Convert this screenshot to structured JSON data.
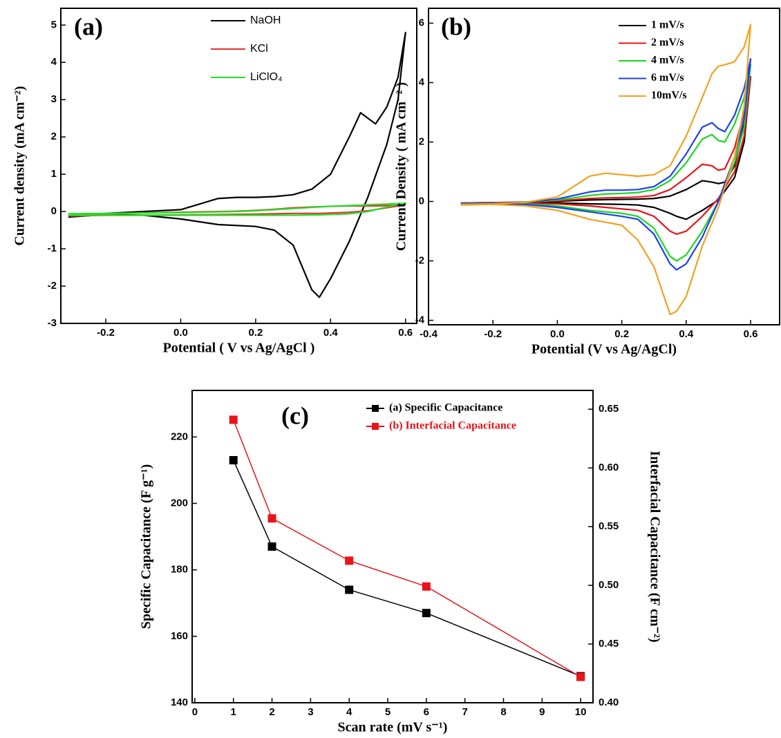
{
  "chart_data": [
    {
      "type": "line",
      "label": "(a)",
      "x_label": "Potential ( V vs Ag/AgCl )",
      "y_label": "Current density (mA cm⁻²)",
      "x": [
        -0.3,
        -0.2,
        -0.1,
        0,
        0.05,
        0.1,
        0.15,
        0.2,
        0.25,
        0.3,
        0.35,
        0.4,
        0.45,
        0.48,
        0.5,
        0.52,
        0.55,
        0.58,
        0.6,
        0.58,
        0.55,
        0.5,
        0.45,
        0.4,
        0.37,
        0.35,
        0.3,
        0.25,
        0.2,
        0.1,
        0,
        -0.1,
        -0.2,
        -0.3
      ],
      "series": [
        {
          "name": "NaOH",
          "color": "#000000",
          "values": [
            -0.1,
            -0.05,
            0,
            0.05,
            0.2,
            0.35,
            0.38,
            0.38,
            0.4,
            0.45,
            0.6,
            1.0,
            2.0,
            2.65,
            2.5,
            2.35,
            2.8,
            3.6,
            4.8,
            3.0,
            1.8,
            0.4,
            -0.8,
            -1.8,
            -2.3,
            -2.1,
            -0.9,
            -0.5,
            -0.4,
            -0.35,
            -0.2,
            -0.1,
            -0.08,
            -0.15
          ]
        },
        {
          "name": "KCl",
          "color": "#e8312f",
          "values": [
            -0.08,
            -0.06,
            -0.04,
            -0.02,
            -0.01,
            0,
            0.01,
            0.03,
            0.06,
            0.1,
            0.12,
            0.14,
            0.15,
            0.15,
            0.15,
            0.15,
            0.16,
            0.18,
            0.2,
            0.15,
            0.1,
            0.02,
            -0.02,
            -0.04,
            -0.05,
            -0.05,
            -0.05,
            -0.06,
            -0.07,
            -0.08,
            -0.09,
            -0.1,
            -0.1,
            -0.12
          ]
        },
        {
          "name": "LiClO₄",
          "color": "#22e02a",
          "values": [
            -0.06,
            -0.05,
            -0.04,
            -0.03,
            -0.02,
            -0.01,
            0,
            0.02,
            0.05,
            0.08,
            0.11,
            0.14,
            0.16,
            0.17,
            0.18,
            0.19,
            0.2,
            0.21,
            0.22,
            0.2,
            0.12,
            0,
            -0.06,
            -0.08,
            -0.09,
            -0.09,
            -0.1,
            -0.1,
            -0.1,
            -0.1,
            -0.1,
            -0.1,
            -0.1,
            -0.1
          ]
        }
      ],
      "xlim": [
        -0.32,
        0.63
      ],
      "xticks": [
        -0.2,
        {
          "value": 0,
          "label": "0.0"
        },
        0.2,
        0.4,
        0.6
      ],
      "ylim": [
        -3,
        5.45
      ],
      "yticks": [
        -3,
        -2,
        -1,
        0,
        1,
        2,
        3,
        4,
        5
      ]
    },
    {
      "type": "line",
      "label": "(b)",
      "x_label": "Potential (V vs Ag/AgCl)",
      "y_label": "Current Density ( mA cm⁻² )",
      "x": [
        -0.3,
        -0.2,
        -0.1,
        0,
        0.05,
        0.1,
        0.15,
        0.2,
        0.25,
        0.3,
        0.35,
        0.4,
        0.45,
        0.48,
        0.5,
        0.52,
        0.55,
        0.58,
        0.6,
        0.58,
        0.55,
        0.5,
        0.45,
        0.4,
        0.37,
        0.35,
        0.3,
        0.25,
        0.2,
        0.1,
        0,
        -0.1,
        -0.2,
        -0.3
      ],
      "series": [
        {
          "name": "1 mV/s",
          "color": "#000000",
          "values": [
            -0.05,
            -0.04,
            -0.03,
            0,
            0.03,
            0.05,
            0.06,
            0.07,
            0.08,
            0.1,
            0.18,
            0.4,
            0.7,
            0.65,
            0.6,
            0.65,
            1.2,
            2.6,
            4.2,
            2.0,
            0.8,
            0.05,
            -0.3,
            -0.6,
            -0.5,
            -0.4,
            -0.2,
            -0.12,
            -0.1,
            -0.08,
            -0.05,
            -0.05,
            -0.05,
            -0.05
          ]
        },
        {
          "name": "2 mV/s",
          "color": "#e8141a",
          "values": [
            -0.05,
            -0.04,
            -0.02,
            0.02,
            0.06,
            0.1,
            0.12,
            0.13,
            0.15,
            0.2,
            0.4,
            0.8,
            1.25,
            1.2,
            1.05,
            1.1,
            1.8,
            3.0,
            4.2,
            2.2,
            1.0,
            0.1,
            -0.5,
            -1.0,
            -1.1,
            -1.0,
            -0.5,
            -0.3,
            -0.25,
            -0.15,
            -0.08,
            -0.06,
            -0.05,
            -0.05
          ]
        },
        {
          "name": "4 mV/s",
          "color": "#19d81f",
          "values": [
            -0.06,
            -0.05,
            -0.03,
            0.05,
            0.12,
            0.2,
            0.25,
            0.27,
            0.3,
            0.4,
            0.7,
            1.3,
            2.1,
            2.25,
            2.05,
            2.0,
            2.6,
            3.5,
            4.6,
            2.5,
            1.3,
            0,
            -1.0,
            -1.8,
            -2.0,
            -1.85,
            -0.9,
            -0.5,
            -0.4,
            -0.3,
            -0.15,
            -0.08,
            -0.06,
            -0.06
          ]
        },
        {
          "name": "6 mV/s",
          "color": "#1a3ff0",
          "values": [
            -0.07,
            -0.06,
            -0.03,
            0.08,
            0.2,
            0.32,
            0.38,
            0.38,
            0.4,
            0.5,
            0.85,
            1.6,
            2.5,
            2.65,
            2.45,
            2.35,
            2.9,
            3.8,
            4.8,
            2.8,
            1.5,
            0,
            -1.2,
            -2.1,
            -2.3,
            -2.1,
            -1.1,
            -0.6,
            -0.5,
            -0.35,
            -0.2,
            -0.1,
            -0.08,
            -0.08
          ]
        },
        {
          "name": "10mV/s",
          "color": "#f5a01e",
          "values": [
            -0.1,
            -0.08,
            -0.03,
            0.15,
            0.5,
            0.85,
            0.95,
            0.9,
            0.85,
            0.9,
            1.2,
            2.2,
            3.5,
            4.3,
            4.55,
            4.6,
            4.7,
            5.2,
            5.95,
            3.2,
            1.5,
            -0.2,
            -1.5,
            -3.2,
            -3.7,
            -3.8,
            -2.2,
            -1.3,
            -0.8,
            -0.6,
            -0.3,
            -0.15,
            -0.1,
            -0.12
          ]
        }
      ],
      "xlim": [
        -0.4,
        0.69
      ],
      "xticks": [
        -0.4,
        -0.2,
        {
          "value": 0,
          "label": "0.0"
        },
        0.2,
        0.4,
        0.6
      ],
      "ylim": [
        -4.15,
        6.5
      ],
      "yticks": [
        -4,
        -2,
        0,
        2,
        4,
        6
      ]
    },
    {
      "type": "line",
      "label": "(c)",
      "markers": true,
      "x_label": "Scan rate (mV s⁻¹)",
      "y_label": "Specific Capacitance (F g⁻¹)",
      "y2_label": "Interfacial Capacitance (F cm⁻²)",
      "x": [
        1,
        2,
        4,
        6,
        10
      ],
      "series": [
        {
          "name": "(a) Specific Capacitance",
          "color": "#000000",
          "values": [
            213,
            187,
            174,
            167,
            148
          ]
        },
        {
          "name": "(b) Interfacial Capacitance",
          "color": "#e8141a",
          "axis": "y2",
          "values": [
            0.641,
            0.557,
            0.521,
            0.499,
            0.422
          ]
        }
      ],
      "xlim": [
        -0.07,
        10.32
      ],
      "xticks": [
        0,
        1,
        2,
        3,
        4,
        5,
        6,
        7,
        8,
        9,
        10
      ],
      "ylim": [
        140,
        234
      ],
      "yticks": [
        140,
        160,
        180,
        200,
        220
      ],
      "y2lim": [
        0.4,
        0.666
      ],
      "y2ticks": [
        {
          "value": 0.4,
          "label": "0.40"
        },
        0.45,
        {
          "value": 0.5,
          "label": "0.50"
        },
        0.55,
        {
          "value": 0.6,
          "label": "0.60"
        },
        0.65
      ]
    }
  ]
}
